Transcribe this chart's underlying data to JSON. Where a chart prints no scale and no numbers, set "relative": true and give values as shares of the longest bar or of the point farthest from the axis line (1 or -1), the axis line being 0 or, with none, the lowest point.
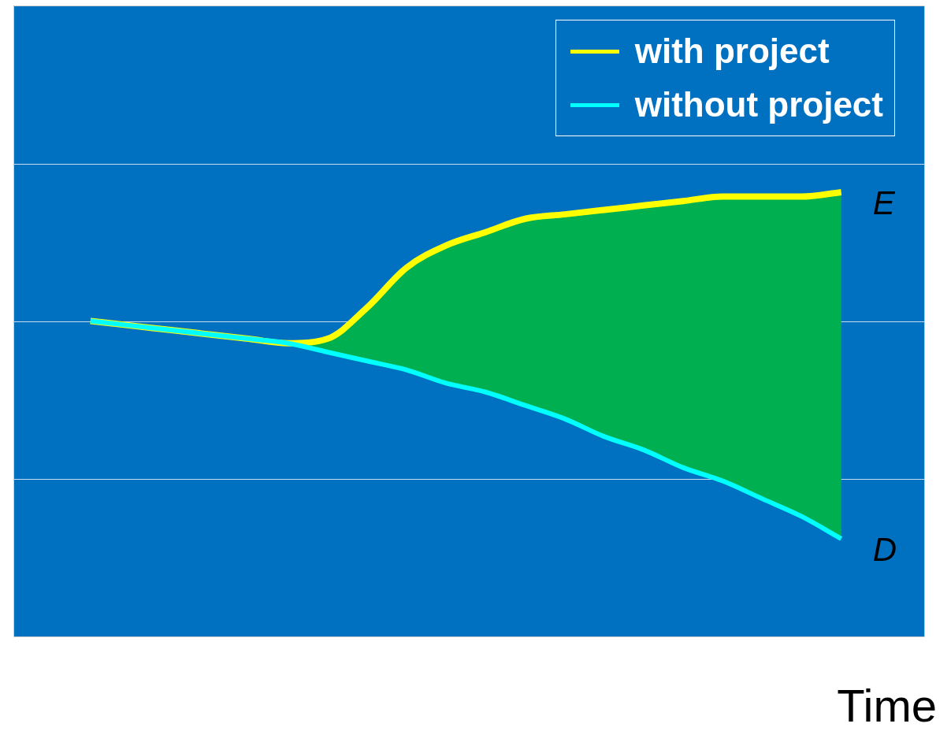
{
  "chart_data": {
    "type": "line",
    "relative": true,
    "xlabel": "Time",
    "legend": "top right",
    "marker": "none",
    "categories": [
      null,
      null,
      null,
      null,
      null,
      null,
      null,
      null,
      null,
      null,
      null,
      null,
      null,
      null,
      null,
      null,
      null,
      null,
      null,
      null
    ],
    "series": [
      {
        "name": "without project",
        "color": "#00ffff",
        "values": [
          0.71,
          0.7,
          0.69,
          0.68,
          0.67,
          0.66,
          0.64,
          0.62,
          0.6,
          0.57,
          0.55,
          0.52,
          0.49,
          0.45,
          0.42,
          0.38,
          0.35,
          0.31,
          0.27,
          0.22
        ]
      },
      {
        "type": "area",
        "color": "#00b050",
        "values": [
          0.71,
          0.7,
          0.69,
          0.68,
          0.67,
          0.66,
          0.67,
          0.74,
          0.83,
          0.88,
          0.91,
          0.94,
          0.95,
          0.96,
          0.97,
          0.98,
          0.99,
          0.99,
          0.99,
          1.0
        ]
      },
      {
        "name": "with project",
        "color": "#ffff00",
        "values": [
          0.71,
          0.7,
          0.69,
          0.68,
          0.67,
          0.66,
          0.67,
          0.74,
          0.83,
          0.88,
          0.91,
          0.94,
          0.95,
          0.96,
          0.97,
          0.98,
          0.99,
          0.99,
          0.99,
          1.0
        ]
      }
    ],
    "ref_lines": [
      {
        "axis": "y",
        "value": 0.355,
        "color": "#c8dcf0"
      },
      {
        "axis": "y",
        "value": 0.709,
        "color": "#c8dcf0"
      },
      {
        "axis": "y",
        "value": 1.064,
        "color": "#c8dcf0"
      }
    ],
    "annotations": [
      "E",
      "D"
    ]
  }
}
